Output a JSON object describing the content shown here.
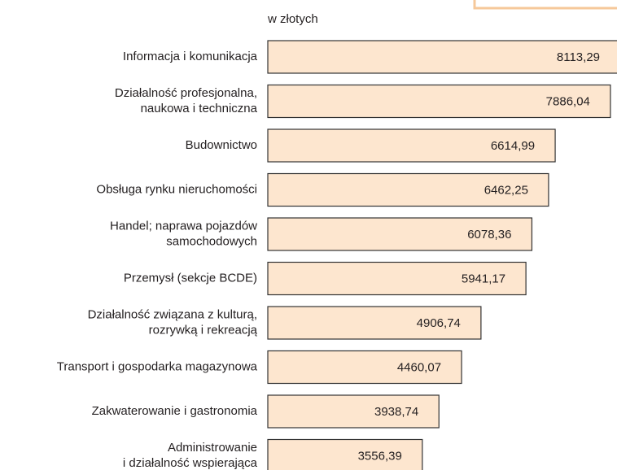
{
  "chart_data": {
    "type": "bar",
    "orientation": "horizontal",
    "subtitle": "w złotych",
    "categories": [
      "Informacja i komunikacja",
      "Działalność profesjonalna,\nnaukowa i techniczna",
      "Budownictwo",
      "Obsługa rynku nieruchomości",
      "Handel; naprawa pojazdów\nsamochodowych",
      "Przemysł (sekcje BCDE)",
      "Działalność związana z kulturą,\nrozrywką i rekreacją",
      "Transport i gospodarka magazynowa",
      "Zakwaterowanie i gastronomia",
      "Administrowanie\ni działalność wspierająca"
    ],
    "values": [
      8113.29,
      7886.04,
      6614.99,
      6462.25,
      6078.36,
      5941.17,
      4906.74,
      4460.07,
      3938.74,
      3556.39
    ],
    "value_labels": [
      "8113,29",
      "7886,04",
      "6614,99",
      "6462,25",
      "6078,36",
      "5941,17",
      "4906,74",
      "4460,07",
      "3938,74",
      "3556,39"
    ],
    "color": "#fde6cf",
    "xlim": [
      0,
      8000
    ]
  }
}
